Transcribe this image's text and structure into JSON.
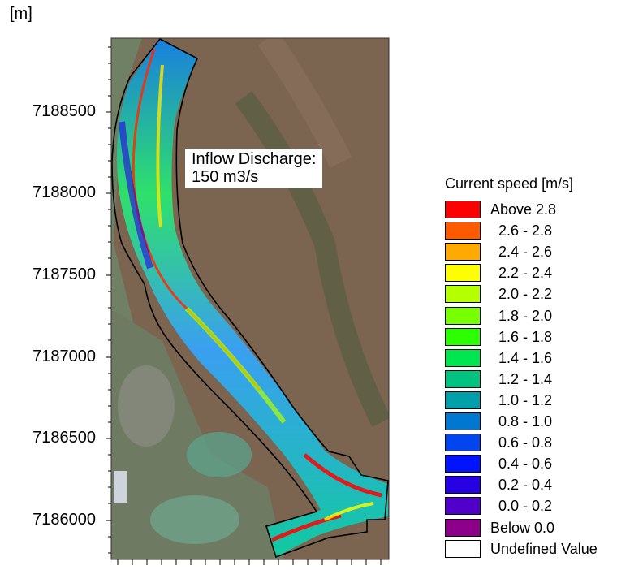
{
  "axis": {
    "unit_label": "[m]",
    "y_ticks": [
      "7188500",
      "7188000",
      "7187500",
      "7187000",
      "7186500",
      "7186000"
    ]
  },
  "annotation": {
    "line1": "Inflow Discharge:",
    "line2": "150 m3/s"
  },
  "legend": {
    "title": "Current speed [m/s]",
    "items": [
      {
        "label": "Above 2.8",
        "color": "#ff0000"
      },
      {
        "label": "  2.6 - 2.8",
        "color": "#ff5a00"
      },
      {
        "label": "  2.4 - 2.6",
        "color": "#ffaa00"
      },
      {
        "label": "  2.2 - 2.4",
        "color": "#ffff00"
      },
      {
        "label": "  2.0 - 2.2",
        "color": "#b4ff00"
      },
      {
        "label": "  1.8 - 2.0",
        "color": "#78ff00"
      },
      {
        "label": "  1.6 - 1.8",
        "color": "#2dff00"
      },
      {
        "label": "  1.4 - 1.6",
        "color": "#00e650"
      },
      {
        "label": "  1.2 - 1.4",
        "color": "#00c382"
      },
      {
        "label": "  1.0 - 1.2",
        "color": "#00a0aa"
      },
      {
        "label": "  0.8 - 1.0",
        "color": "#0078d2"
      },
      {
        "label": "  0.6 - 0.8",
        "color": "#0046f0"
      },
      {
        "label": "  0.4 - 0.6",
        "color": "#0014ff"
      },
      {
        "label": "  0.2 - 0.4",
        "color": "#2800e6"
      },
      {
        "label": "  0.0 - 0.2",
        "color": "#5000c8"
      },
      {
        "label": "Below 0.0",
        "color": "#8c008c"
      },
      {
        "label": "Undefined Value",
        "color": "#ffffff"
      }
    ]
  }
}
